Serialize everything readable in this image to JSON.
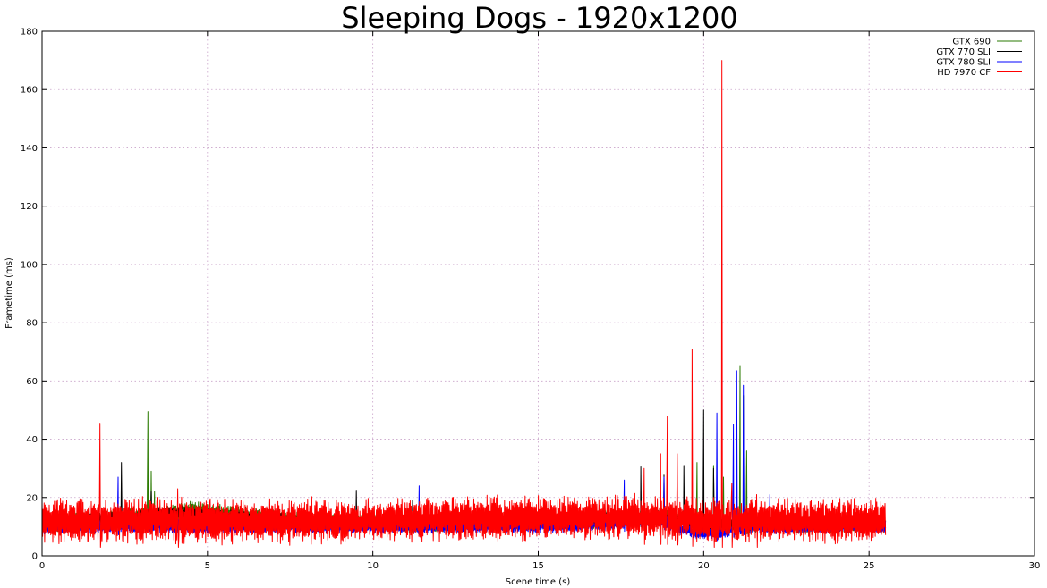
{
  "chart_data": {
    "type": "line",
    "title": "Sleeping Dogs - 1920x1200",
    "xlabel": "Scene time (s)",
    "ylabel": "Frametime (ms)",
    "xlim": [
      0,
      30
    ],
    "ylim": [
      0,
      180
    ],
    "xticks": [
      "0",
      "5",
      "10",
      "15",
      "20",
      "25",
      "30"
    ],
    "yticks": [
      "0",
      "20",
      "40",
      "60",
      "80",
      "100",
      "120",
      "140",
      "160",
      "180"
    ],
    "grid": true,
    "legend_position": "top-right",
    "series": [
      {
        "name": "GTX 690",
        "color": "#2a7a00",
        "x_end": 25.5,
        "base": [
          [
            0,
            11
          ],
          [
            3.5,
            14
          ],
          [
            4.5,
            16
          ],
          [
            6,
            14
          ],
          [
            8,
            12
          ],
          [
            12,
            11
          ],
          [
            16,
            12
          ],
          [
            18,
            13
          ],
          [
            19,
            13
          ],
          [
            20,
            11
          ],
          [
            21,
            11
          ],
          [
            22,
            11
          ],
          [
            25.5,
            11
          ]
        ],
        "amplitude": 2.5,
        "spikes": [
          [
            3.2,
            49.5
          ],
          [
            3.3,
            29
          ],
          [
            3.4,
            22
          ],
          [
            19.8,
            32
          ],
          [
            20.3,
            31
          ],
          [
            20.6,
            27
          ],
          [
            21.1,
            65
          ],
          [
            21.2,
            55
          ],
          [
            21.3,
            36
          ]
        ]
      },
      {
        "name": "GTX 770 SLI",
        "color": "#000000",
        "x_end": 25.5,
        "base": [
          [
            0,
            11
          ],
          [
            4,
            15
          ],
          [
            6,
            13
          ],
          [
            10,
            11
          ],
          [
            15,
            11
          ],
          [
            18,
            13
          ],
          [
            19,
            13
          ],
          [
            20,
            11
          ],
          [
            21,
            11
          ],
          [
            25.5,
            11
          ]
        ],
        "amplitude": 2,
        "spikes": [
          [
            2.4,
            32
          ],
          [
            3.3,
            22
          ],
          [
            9.5,
            22.5
          ],
          [
            11.2,
            19
          ],
          [
            18.1,
            30.5
          ],
          [
            18.8,
            28
          ],
          [
            19.4,
            31
          ],
          [
            20.0,
            50
          ],
          [
            20.3,
            30
          ]
        ]
      },
      {
        "name": "GTX 780 SLI",
        "color": "#0000ff",
        "x_end": 25.5,
        "base": [
          [
            0,
            10
          ],
          [
            5,
            10
          ],
          [
            10,
            10
          ],
          [
            15,
            10
          ],
          [
            17.5,
            11
          ],
          [
            18.5,
            13
          ],
          [
            19.2,
            10
          ],
          [
            19.8,
            8
          ],
          [
            20.5,
            8
          ],
          [
            21.2,
            10
          ],
          [
            25.5,
            10
          ]
        ],
        "amplitude": 2,
        "spikes": [
          [
            2.3,
            27
          ],
          [
            11.4,
            24
          ],
          [
            17.6,
            26
          ],
          [
            18.8,
            27
          ],
          [
            20.4,
            49
          ],
          [
            20.9,
            45
          ],
          [
            21.0,
            63.5
          ],
          [
            21.2,
            58.5
          ],
          [
            22.0,
            21
          ]
        ]
      },
      {
        "name": "HD 7970 CF",
        "color": "#ff0000",
        "x_end": 25.5,
        "base": [
          [
            0,
            12
          ],
          [
            5,
            12
          ],
          [
            10,
            12
          ],
          [
            15,
            13
          ],
          [
            18,
            13
          ],
          [
            19,
            13
          ],
          [
            20,
            12
          ],
          [
            21,
            12
          ],
          [
            25.5,
            12
          ]
        ],
        "amplitude": 6.5,
        "spikes": [
          [
            1.75,
            45.5
          ],
          [
            4.1,
            23
          ],
          [
            18.2,
            30
          ],
          [
            18.7,
            35
          ],
          [
            18.9,
            48
          ],
          [
            19.2,
            35
          ],
          [
            19.65,
            71
          ],
          [
            20.3,
            20
          ],
          [
            20.55,
            170
          ],
          [
            20.85,
            25
          ],
          [
            21.6,
            21
          ]
        ]
      }
    ]
  }
}
